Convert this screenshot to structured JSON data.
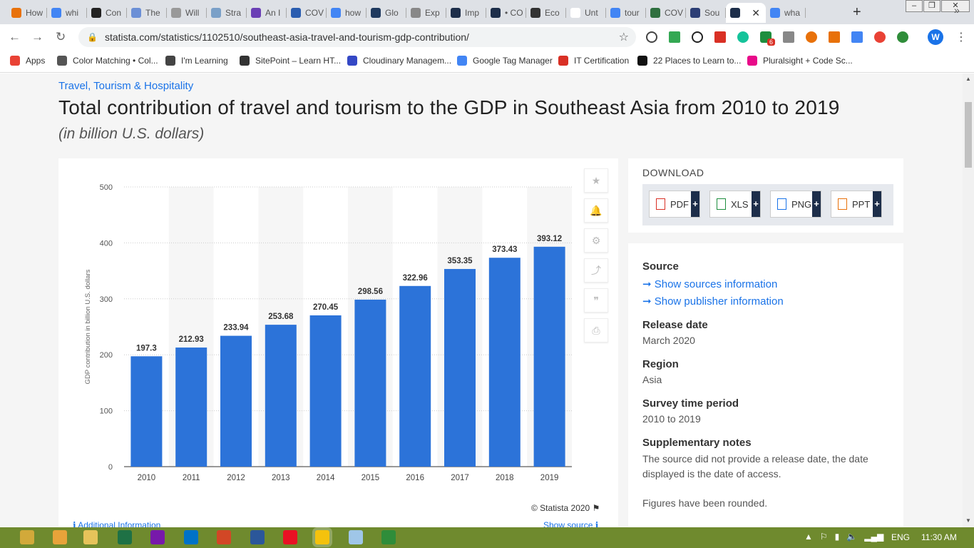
{
  "browser": {
    "tabs": [
      {
        "label": "How",
        "color": "#e8710a"
      },
      {
        "label": "whi",
        "color": "#4285f4"
      },
      {
        "label": "Con",
        "color": "#222222"
      },
      {
        "label": "The",
        "color": "#6b8fd6"
      },
      {
        "label": "Will",
        "color": "#999999"
      },
      {
        "label": "Stra",
        "color": "#7aa0c8"
      },
      {
        "label": "An I",
        "color": "#6a3fb5"
      },
      {
        "label": "COV",
        "color": "#2a5db0"
      },
      {
        "label": "how",
        "color": "#4285f4"
      },
      {
        "label": "Glo",
        "color": "#1f3a5f"
      },
      {
        "label": "Exp",
        "color": "#888888"
      },
      {
        "label": "Imp",
        "color": "#1d2e4a"
      },
      {
        "label": "• CO",
        "color": "#1d2e4a"
      },
      {
        "label": "Eco",
        "color": "#333333"
      },
      {
        "label": "Unt",
        "color": "#ffffff"
      },
      {
        "label": "tour",
        "color": "#4285f4"
      },
      {
        "label": "COV",
        "color": "#2f6f3f"
      },
      {
        "label": "Sou",
        "color": "#2c3e75"
      },
      {
        "label": "",
        "color": "#1d2e4a",
        "active": true
      },
      {
        "label": "wha",
        "color": "#4285f4"
      }
    ],
    "new_tab_label": "+",
    "close_label": "✕",
    "url": "statista.com/statistics/1102510/southeast-asia-travel-and-tourism-gdp-contribution/",
    "profile_initial": "W",
    "extension_badge": "6",
    "bookmarks": [
      {
        "label": "Apps",
        "color": "#e94235"
      },
      {
        "label": "Color Matching • Col...",
        "color": "#555555"
      },
      {
        "label": "I'm Learning",
        "color": "#444444"
      },
      {
        "label": "SitePoint – Learn HT...",
        "color": "#333333"
      },
      {
        "label": "Cloudinary Managem...",
        "color": "#3448c5"
      },
      {
        "label": "Google Tag Manager",
        "color": "#4285f4"
      },
      {
        "label": "IT Certification",
        "color": "#d93025"
      },
      {
        "label": "22 Places to Learn to...",
        "color": "#111111"
      },
      {
        "label": "Pluralsight + Code Sc...",
        "color": "#e80a89"
      }
    ]
  },
  "page": {
    "category": "Travel, Tourism & Hospitality",
    "title": "Total contribution of travel and tourism to the GDP in Southeast Asia from 2010 to 2019",
    "subtitle": "(in billion U.S. dollars)",
    "copyright": "© Statista 2020",
    "additional_info": "Additional Information",
    "show_source": "Show source",
    "download": {
      "title": "DOWNLOAD",
      "buttons": [
        {
          "label": "PDF",
          "color": "#d93025"
        },
        {
          "label": "XLS",
          "color": "#1e8e3e"
        },
        {
          "label": "PNG",
          "color": "#1a73e8"
        },
        {
          "label": "PPT",
          "color": "#e8710a"
        }
      ]
    },
    "info": {
      "source_heading": "Source",
      "show_sources": "➞ Show sources information",
      "show_publisher": "➞ Show publisher information",
      "release_heading": "Release date",
      "release_value": "March 2020",
      "region_heading": "Region",
      "region_value": "Asia",
      "survey_heading": "Survey time period",
      "survey_value": "2010 to 2019",
      "supp_heading": "Supplementary notes",
      "supp_text": "The source did not provide a release date, the date displayed is the date of access.",
      "supp_text2": "Figures have been rounded."
    }
  },
  "chart_data": {
    "type": "bar",
    "categories": [
      "2010",
      "2011",
      "2012",
      "2013",
      "2014",
      "2015",
      "2016",
      "2017",
      "2018",
      "2019"
    ],
    "values": [
      197.3,
      212.93,
      233.94,
      253.68,
      270.45,
      298.56,
      322.96,
      353.35,
      373.43,
      393.12
    ],
    "value_labels": [
      "197.3",
      "212.93",
      "233.94",
      "253.68",
      "270.45",
      "298.56",
      "322.96",
      "353.35",
      "373.43",
      "393.12"
    ],
    "ylabel": "GDP contribution in billion U.S. dollars",
    "ylim": [
      0,
      500
    ],
    "yticks": [
      "0",
      "100",
      "200",
      "300",
      "400",
      "500"
    ],
    "bar_color": "#2c73d9",
    "grid": true
  },
  "taskbar": {
    "apps": [
      {
        "name": "chrome",
        "color": "#d2a93a"
      },
      {
        "name": "media",
        "color": "#e8a33a"
      },
      {
        "name": "explorer",
        "color": "#e6c35a"
      },
      {
        "name": "excel",
        "color": "#1e7145"
      },
      {
        "name": "onenote",
        "color": "#7719aa"
      },
      {
        "name": "outlook",
        "color": "#0072c6"
      },
      {
        "name": "powerpoint",
        "color": "#d24726"
      },
      {
        "name": "word",
        "color": "#2b579a"
      },
      {
        "name": "player",
        "color": "#e81123"
      },
      {
        "name": "chrome-active",
        "color": "#f4c20d"
      },
      {
        "name": "notepad",
        "color": "#9fc6e8"
      },
      {
        "name": "globe",
        "color": "#2f8d3a"
      }
    ],
    "lang": "ENG",
    "time": "11:30 AM"
  }
}
